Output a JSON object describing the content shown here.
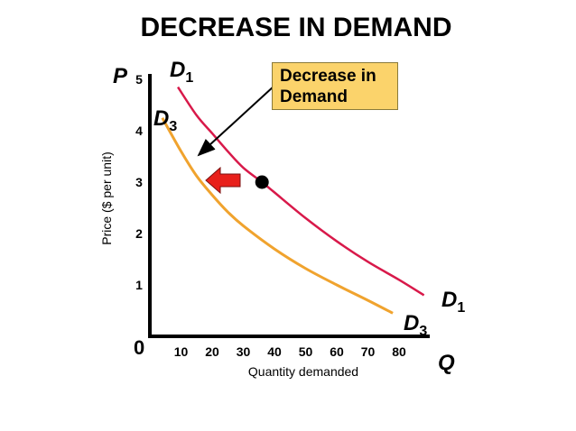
{
  "title": "DECREASE IN DEMAND",
  "colors": {
    "d1": "#d8194a",
    "d3": "#f0a32e",
    "callout_bg": "#fbd36b",
    "arrow": "#e8201b"
  },
  "callout": {
    "line1": "Decrease in",
    "line2": "Demand"
  },
  "chart_data": {
    "type": "line",
    "xlabel": "Quantity demanded",
    "ylabel": "Price ($ per unit)",
    "x_axis_symbol": "Q",
    "y_axis_symbol": "P",
    "origin_label": "0",
    "xlim": [
      0,
      90
    ],
    "ylim": [
      0,
      5.4
    ],
    "x_ticks": [
      10,
      20,
      30,
      40,
      50,
      60,
      70,
      80
    ],
    "y_ticks": [
      1,
      2,
      3,
      4,
      5
    ],
    "grid": false,
    "series": [
      {
        "name": "D1",
        "label_main": "D",
        "label_sub": "1",
        "x": [
          9,
          15,
          20,
          25,
          30,
          36,
          40,
          50,
          60,
          70,
          80,
          88
        ],
        "y": [
          4.85,
          4.3,
          3.95,
          3.6,
          3.28,
          3.0,
          2.8,
          2.3,
          1.85,
          1.45,
          1.1,
          0.8
        ]
      },
      {
        "name": "D3",
        "label_main": "D",
        "label_sub": "3",
        "x": [
          4,
          10,
          15,
          20,
          25,
          30,
          40,
          50,
          60,
          70,
          78
        ],
        "y": [
          4.25,
          3.6,
          3.12,
          2.75,
          2.42,
          2.15,
          1.7,
          1.32,
          1.0,
          0.7,
          0.45
        ]
      }
    ],
    "marked_point": {
      "x": 36,
      "y": 3.0
    }
  }
}
